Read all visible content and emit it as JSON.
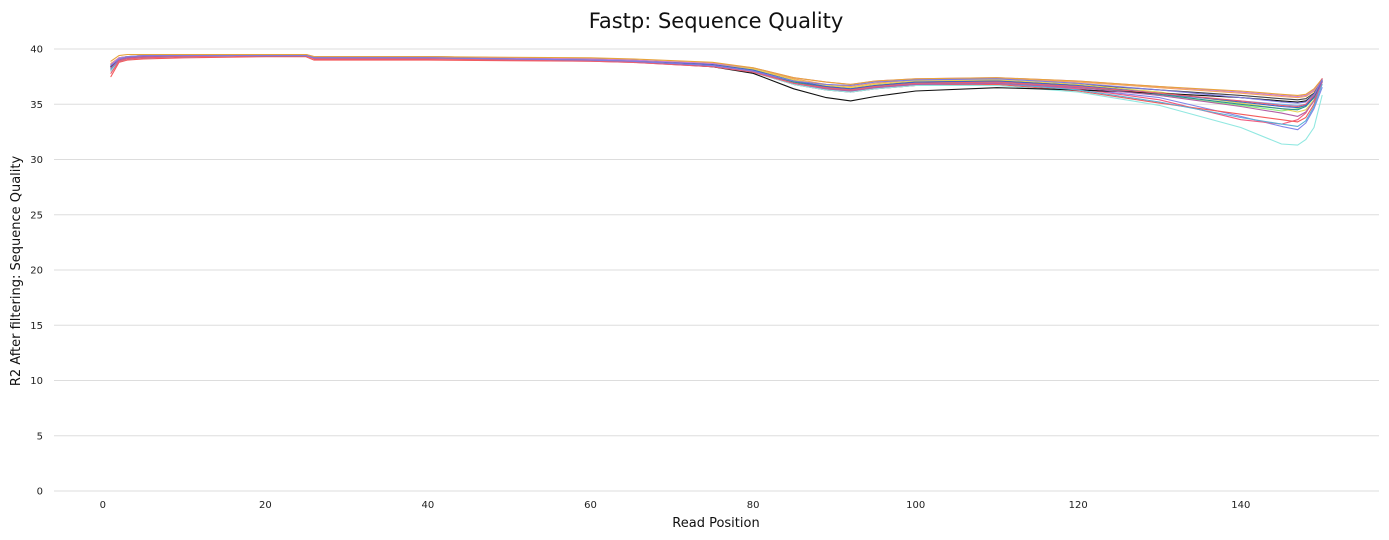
{
  "chart_data": {
    "type": "line",
    "title": "Fastp: Sequence Quality",
    "xlabel": "Read Position",
    "ylabel": "R2 After filtering: Sequence Quality",
    "xlim": [
      -6,
      157
    ],
    "ylim": [
      0,
      41
    ],
    "x_ticks": [
      0,
      20,
      40,
      60,
      80,
      100,
      120,
      140
    ],
    "y_ticks": [
      0,
      5,
      10,
      15,
      20,
      25,
      30,
      35,
      40
    ],
    "grid": "horizontal",
    "legend": "none",
    "x": [
      1,
      2,
      3,
      5,
      10,
      20,
      25,
      26,
      40,
      60,
      65,
      75,
      80,
      85,
      89,
      92,
      95,
      100,
      110,
      120,
      130,
      140,
      145,
      147,
      148,
      149,
      150
    ],
    "series": [
      {
        "color": "#7cb5ec",
        "values": [
          38.3,
          39.0,
          39.2,
          39.3,
          39.4,
          39.4,
          39.4,
          39.2,
          39.2,
          39.0,
          38.9,
          38.5,
          38.0,
          36.9,
          36.4,
          36.2,
          36.5,
          36.8,
          36.9,
          36.5,
          35.9,
          35.3,
          35.0,
          34.9,
          35.0,
          35.6,
          37.1
        ]
      },
      {
        "color": "#434348",
        "values": [
          38.6,
          39.2,
          39.3,
          39.4,
          39.4,
          39.4,
          39.4,
          39.2,
          39.2,
          39.1,
          39.0,
          38.6,
          38.1,
          37.1,
          36.6,
          36.4,
          36.7,
          37.0,
          37.1,
          36.8,
          36.3,
          35.8,
          35.5,
          35.4,
          35.5,
          36.0,
          37.2
        ]
      },
      {
        "color": "#90ed7d",
        "values": [
          38.4,
          39.0,
          39.2,
          39.3,
          39.4,
          39.4,
          39.4,
          39.2,
          39.2,
          39.0,
          38.9,
          38.6,
          38.1,
          37.0,
          36.5,
          36.3,
          36.6,
          36.9,
          37.0,
          36.6,
          35.8,
          34.9,
          34.4,
          34.6,
          34.9,
          35.6,
          37.0
        ]
      },
      {
        "color": "#f7a35c",
        "values": [
          38.7,
          39.2,
          39.3,
          39.4,
          39.4,
          39.5,
          39.5,
          39.3,
          39.3,
          39.1,
          39.0,
          38.7,
          38.2,
          37.3,
          36.8,
          36.6,
          36.9,
          37.2,
          37.3,
          37.0,
          36.5,
          36.0,
          35.7,
          35.6,
          35.7,
          36.2,
          37.3
        ]
      },
      {
        "color": "#8085e9",
        "values": [
          38.1,
          38.9,
          39.1,
          39.2,
          39.3,
          39.4,
          39.4,
          39.2,
          39.2,
          39.0,
          38.9,
          38.4,
          37.9,
          36.8,
          36.3,
          36.1,
          36.4,
          36.7,
          36.8,
          36.4,
          35.6,
          33.9,
          33.0,
          32.7,
          33.3,
          34.6,
          36.5
        ]
      },
      {
        "color": "#f15c80",
        "values": [
          38.0,
          38.9,
          39.1,
          39.2,
          39.3,
          39.4,
          39.4,
          39.2,
          39.2,
          39.0,
          38.9,
          38.5,
          38.0,
          36.9,
          36.4,
          36.2,
          36.5,
          36.8,
          36.9,
          36.4,
          35.4,
          33.6,
          33.2,
          33.6,
          34.2,
          35.4,
          37.0
        ]
      },
      {
        "color": "#e4d354",
        "values": [
          38.5,
          39.1,
          39.3,
          39.4,
          39.4,
          39.5,
          39.5,
          39.3,
          39.3,
          39.1,
          39.0,
          38.6,
          38.2,
          37.2,
          36.7,
          36.5,
          36.8,
          37.1,
          37.2,
          36.8,
          36.1,
          35.1,
          34.6,
          34.3,
          34.5,
          35.4,
          37.1
        ]
      },
      {
        "color": "#2b908f",
        "values": [
          38.2,
          38.9,
          39.1,
          39.3,
          39.3,
          39.4,
          39.4,
          39.2,
          39.2,
          39.0,
          38.9,
          38.5,
          38.0,
          37.0,
          36.5,
          36.3,
          36.6,
          36.9,
          37.0,
          36.6,
          35.9,
          35.0,
          34.6,
          34.5,
          34.8,
          35.6,
          37.0
        ]
      },
      {
        "color": "#f45b5b",
        "values": [
          37.5,
          38.8,
          39.0,
          39.1,
          39.2,
          39.3,
          39.3,
          39.0,
          39.0,
          38.9,
          38.8,
          38.4,
          37.9,
          36.8,
          36.3,
          36.1,
          36.4,
          36.7,
          36.8,
          36.2,
          35.1,
          34.1,
          33.6,
          33.4,
          33.8,
          35.0,
          37.2
        ]
      },
      {
        "color": "#91e8e1",
        "values": [
          38.0,
          38.9,
          39.1,
          39.2,
          39.3,
          39.4,
          39.4,
          39.2,
          39.2,
          39.0,
          38.9,
          38.4,
          37.9,
          36.8,
          36.3,
          36.1,
          36.4,
          36.7,
          36.7,
          36.1,
          34.9,
          32.9,
          31.4,
          31.3,
          31.8,
          32.9,
          35.8
        ]
      },
      {
        "color": "#111111",
        "values": [
          38.4,
          39.0,
          39.2,
          39.3,
          39.4,
          39.4,
          39.4,
          39.2,
          39.2,
          39.0,
          38.9,
          38.4,
          37.8,
          36.4,
          35.6,
          35.3,
          35.7,
          36.2,
          36.5,
          36.3,
          36.0,
          35.6,
          35.3,
          35.2,
          35.3,
          35.9,
          37.1
        ]
      },
      {
        "color": "#3f63c8",
        "values": [
          38.3,
          39.0,
          39.2,
          39.3,
          39.4,
          39.4,
          39.4,
          39.3,
          39.3,
          39.1,
          39.0,
          38.6,
          38.1,
          37.1,
          36.6,
          36.4,
          36.7,
          37.0,
          37.1,
          36.7,
          36.0,
          35.2,
          34.8,
          34.7,
          34.9,
          35.7,
          37.1
        ]
      },
      {
        "color": "#c77ed6",
        "values": [
          38.6,
          39.2,
          39.3,
          39.4,
          39.4,
          39.5,
          39.5,
          39.3,
          39.3,
          39.1,
          39.0,
          38.7,
          38.3,
          37.4,
          37.0,
          36.8,
          37.1,
          37.3,
          37.4,
          37.1,
          36.6,
          36.1,
          35.8,
          35.7,
          35.8,
          36.3,
          37.3
        ]
      },
      {
        "color": "#e8a33a",
        "values": [
          38.9,
          39.4,
          39.5,
          39.5,
          39.5,
          39.5,
          39.5,
          39.3,
          39.3,
          39.2,
          39.1,
          38.8,
          38.3,
          37.4,
          37.0,
          36.8,
          37.1,
          37.3,
          37.4,
          37.1,
          36.6,
          36.2,
          35.9,
          35.8,
          35.9,
          36.4,
          37.3
        ]
      },
      {
        "color": "#5ab0d6",
        "values": [
          38.2,
          38.9,
          39.1,
          39.2,
          39.3,
          39.4,
          39.4,
          39.2,
          39.2,
          39.0,
          38.9,
          38.5,
          38.0,
          36.9,
          36.4,
          36.2,
          36.5,
          36.8,
          36.9,
          36.3,
          35.2,
          33.8,
          33.2,
          33.0,
          33.5,
          34.8,
          36.8
        ]
      },
      {
        "color": "#b45fa6",
        "values": [
          38.3,
          39.0,
          39.2,
          39.3,
          39.4,
          39.4,
          39.4,
          39.2,
          39.2,
          39.0,
          38.9,
          38.5,
          38.0,
          36.9,
          36.4,
          36.2,
          36.5,
          36.8,
          36.9,
          36.5,
          35.8,
          34.8,
          34.2,
          33.9,
          34.3,
          35.3,
          37.0
        ]
      },
      {
        "color": "#e95f74",
        "values": [
          37.8,
          38.9,
          39.1,
          39.2,
          39.3,
          39.4,
          39.4,
          39.1,
          39.1,
          38.9,
          38.8,
          38.4,
          37.9,
          36.9,
          36.5,
          36.3,
          36.6,
          36.9,
          37.0,
          36.6,
          36.0,
          35.3,
          34.9,
          34.8,
          35.0,
          35.8,
          37.3
        ]
      },
      {
        "color": "#7f7ce0",
        "values": [
          38.5,
          39.1,
          39.3,
          39.4,
          39.4,
          39.4,
          39.4,
          39.2,
          39.2,
          39.0,
          38.9,
          38.5,
          38.0,
          37.1,
          36.8,
          36.7,
          37.0,
          37.2,
          37.3,
          36.9,
          36.3,
          35.6,
          35.2,
          35.1,
          35.2,
          35.9,
          37.2
        ]
      }
    ]
  }
}
